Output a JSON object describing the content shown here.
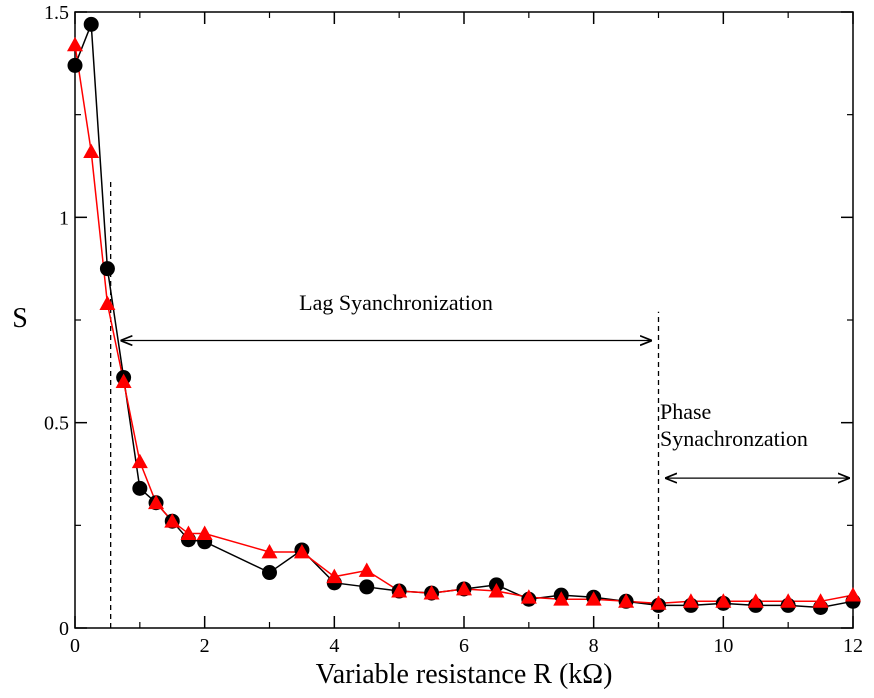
{
  "chart_data": {
    "type": "line",
    "title": "",
    "xlabel": "Variable resistance R (kΩ)",
    "ylabel": "S",
    "xlim": [
      0,
      12
    ],
    "ylim": [
      0,
      1.5
    ],
    "xticks": [
      0,
      2,
      4,
      6,
      8,
      10,
      12
    ],
    "yticks": [
      0,
      0.5,
      1,
      1.5
    ],
    "xtick_labels": [
      "0",
      "2",
      "4",
      "6",
      "8",
      "10",
      "12"
    ],
    "ytick_labels": [
      "0",
      "0.5",
      "1",
      "1.5"
    ],
    "grid": false,
    "legend": "none",
    "series": [
      {
        "color": "#000000",
        "marker": "circle",
        "x": [
          0,
          0.25,
          0.5,
          0.75,
          1.0,
          1.25,
          1.5,
          1.75,
          2.0,
          3.0,
          3.5,
          4.0,
          4.5,
          5.0,
          5.5,
          6.0,
          6.5,
          7.0,
          7.5,
          8.0,
          8.5,
          9.0,
          9.5,
          10.0,
          10.5,
          11.0,
          11.5,
          12.0
        ],
        "y": [
          1.37,
          1.47,
          0.875,
          0.61,
          0.34,
          0.305,
          0.26,
          0.215,
          0.21,
          0.135,
          0.19,
          0.11,
          0.1,
          0.09,
          0.085,
          0.095,
          0.105,
          0.07,
          0.08,
          0.075,
          0.065,
          0.055,
          0.055,
          0.06,
          0.055,
          0.055,
          0.05,
          0.065
        ]
      },
      {
        "color": "#ff0000",
        "marker": "triangle",
        "x": [
          0,
          0.25,
          0.5,
          0.75,
          1.0,
          1.25,
          1.5,
          1.75,
          2.0,
          3.0,
          3.5,
          4.0,
          4.5,
          5.0,
          5.5,
          6.0,
          6.5,
          7.0,
          7.5,
          8.0,
          8.5,
          9.0,
          9.5,
          10.0,
          10.5,
          11.0,
          11.5,
          12.0
        ],
        "y": [
          1.42,
          1.16,
          0.79,
          0.6,
          0.405,
          0.305,
          0.26,
          0.23,
          0.23,
          0.185,
          0.185,
          0.125,
          0.14,
          0.09,
          0.085,
          0.095,
          0.09,
          0.075,
          0.07,
          0.07,
          0.065,
          0.06,
          0.065,
          0.065,
          0.065,
          0.065,
          0.065,
          0.08
        ]
      }
    ],
    "annotations": {
      "lag_label": "Lag Syanchronization",
      "phase_label_line1": "Phase",
      "phase_label_line2": "Synachronzation",
      "vlines": [
        {
          "x": 0.55,
          "y_top": 1.09
        },
        {
          "x": 9.0,
          "y_top": 0.77
        }
      ],
      "arrows": [
        {
          "x_from": 0.7,
          "x_to": 8.9,
          "y": 0.7
        },
        {
          "x_from": 9.1,
          "x_to": 11.95,
          "y": 0.365
        }
      ]
    }
  }
}
